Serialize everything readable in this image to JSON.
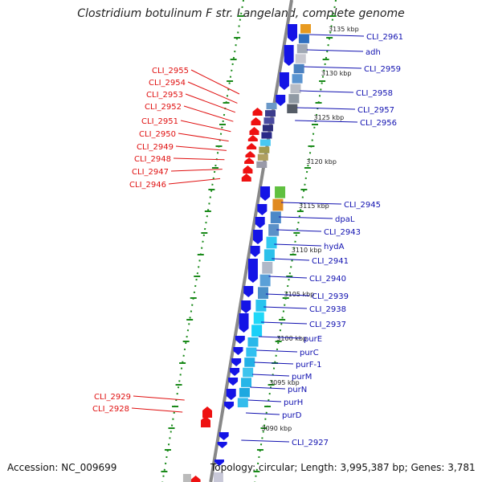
{
  "title": "Clostridium botulinum F str. Langeland, complete genome",
  "accession_text": "Accession: NC_009699",
  "topology_text": "Topology: circular; Length: 3,995,387 bp; Genes: 3,781",
  "colors": {
    "forward_label": "#1010b0",
    "reverse_label": "#e01010",
    "forward_gene": "#1414e6",
    "reverse_gene": "#ee1111",
    "backbone": "#888888",
    "guide": "#1a8a1a"
  },
  "kbp_marks": [
    "3135 kbp",
    "3130 kbp",
    "3125 kbp",
    "3120 kbp",
    "3115 kbp",
    "3110 kbp",
    "3105 kbp",
    "3100 kbp",
    "3095 kbp",
    "3090 kbp"
  ],
  "forward_labels": [
    "CLI_2961",
    "adh",
    "CLI_2959",
    "CLI_2958",
    "CLI_2957",
    "CLI_2956",
    "CLI_2945",
    "dpaL",
    "CLI_2943",
    "hydA",
    "CLI_2941",
    "CLI_2940",
    "CLI_2939",
    "CLI_2938",
    "CLI_2937",
    "purE",
    "purC",
    "purF-1",
    "purM",
    "purN",
    "purH",
    "purD",
    "CLI_2927"
  ],
  "reverse_labels": [
    "CLI_2955",
    "CLI_2954",
    "CLI_2953",
    "CLI_2952",
    "CLI_2951",
    "CLI_2950",
    "CLI_2949",
    "CLI_2948",
    "CLI_2947",
    "CLI_2946",
    "CLI_2929",
    "CLI_2928"
  ]
}
